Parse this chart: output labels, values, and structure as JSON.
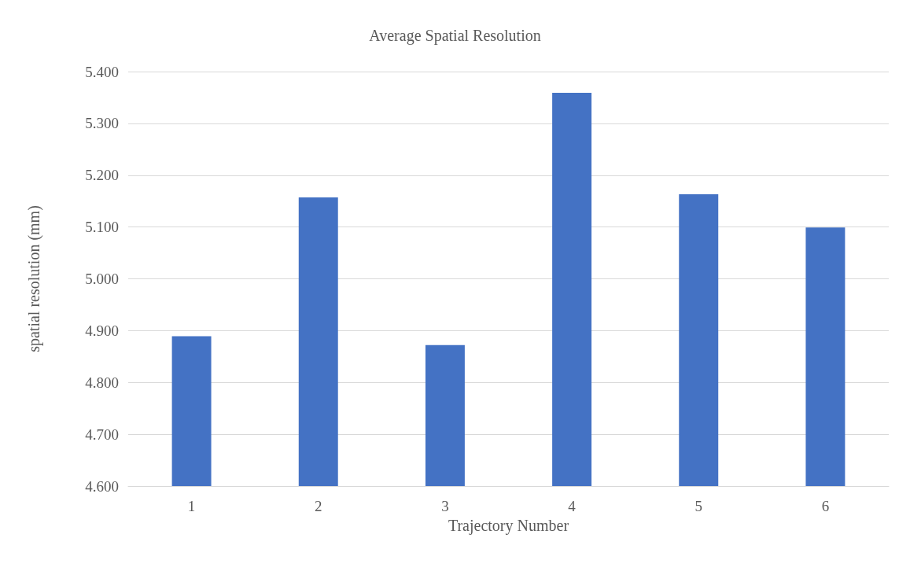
{
  "chart_data": {
    "type": "bar",
    "title": "Average Spatial Resolution",
    "xlabel": "Trajectory Number",
    "ylabel": "spatial resolution (mm)",
    "categories": [
      "1",
      "2",
      "3",
      "4",
      "5",
      "6"
    ],
    "values": [
      4.889,
      5.157,
      4.872,
      5.359,
      5.163,
      5.099
    ],
    "color": "#4472c4",
    "ylim": [
      4.6,
      5.4
    ],
    "yticks": [
      {
        "value": 4.6,
        "label": "4.600"
      },
      {
        "value": 4.7,
        "label": "4.700"
      },
      {
        "value": 4.8,
        "label": "4.800"
      },
      {
        "value": 4.9,
        "label": "4.900"
      },
      {
        "value": 5.0,
        "label": "5.000"
      },
      {
        "value": 5.1,
        "label": "5.100"
      },
      {
        "value": 5.2,
        "label": "5.200"
      },
      {
        "value": 5.3,
        "label": "5.300"
      },
      {
        "value": 5.4,
        "label": "5.400"
      }
    ],
    "grid": "y"
  }
}
